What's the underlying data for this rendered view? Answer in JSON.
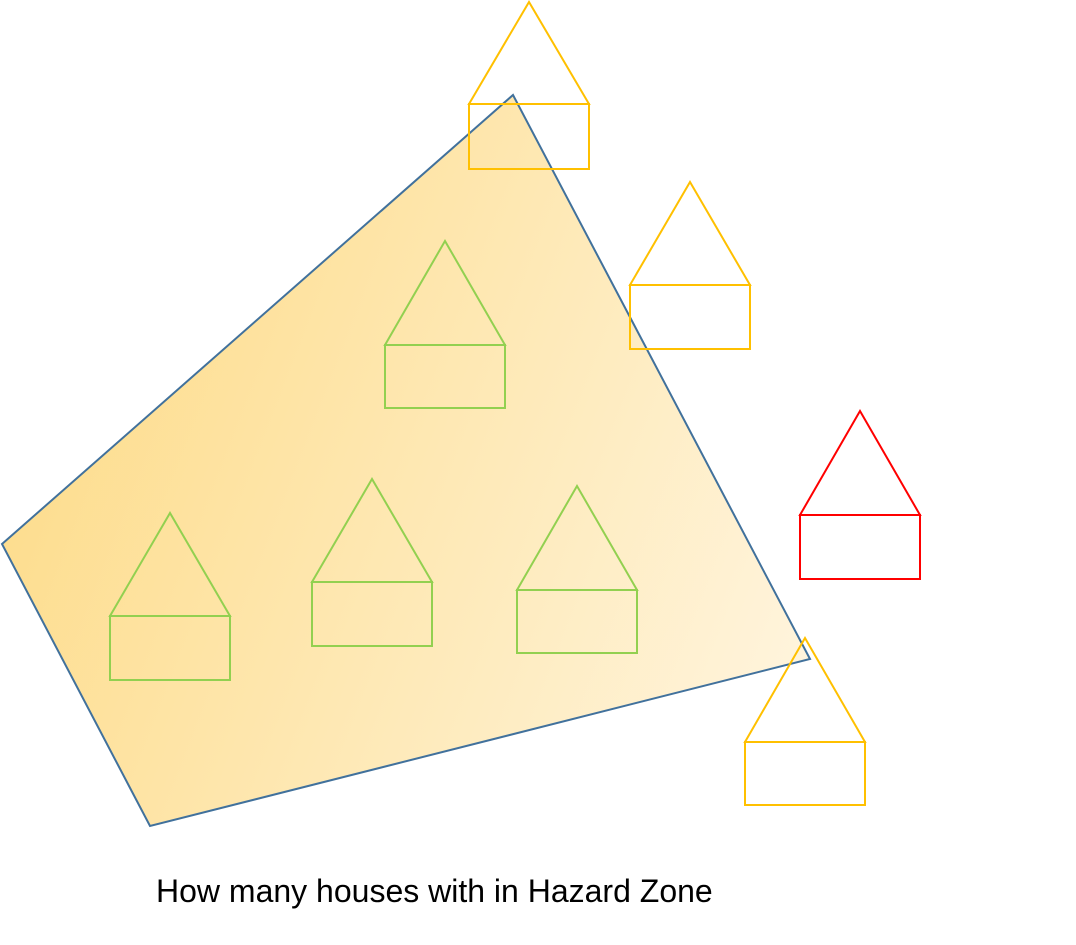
{
  "caption": "How many houses with in Hazard Zone",
  "zone": {
    "label": "hazard-zone",
    "fill_start": "#fddc8a",
    "fill_end": "#fff4dc",
    "stroke": "#41719c"
  },
  "status_colors": {
    "inside": "#92d050",
    "partial": "#ffc000",
    "outside": "#ff0000"
  },
  "houses": [
    {
      "id": "house-1",
      "status": "partial"
    },
    {
      "id": "house-2",
      "status": "partial"
    },
    {
      "id": "house-3",
      "status": "inside"
    },
    {
      "id": "house-4",
      "status": "inside"
    },
    {
      "id": "house-5",
      "status": "inside"
    },
    {
      "id": "house-6",
      "status": "inside"
    },
    {
      "id": "house-7",
      "status": "outside"
    },
    {
      "id": "house-8",
      "status": "partial"
    }
  ]
}
